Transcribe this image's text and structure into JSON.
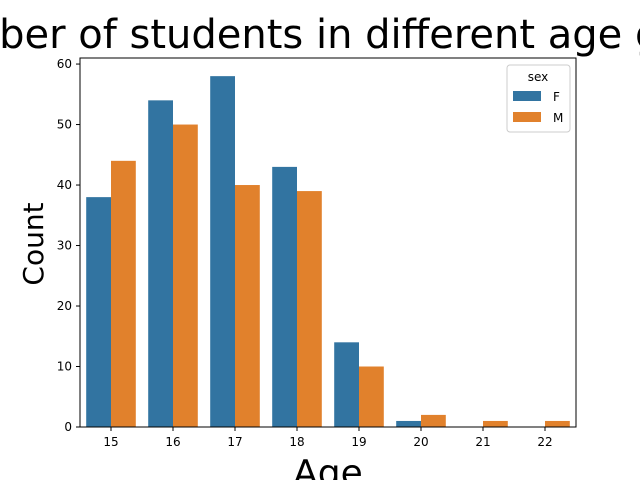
{
  "chart_data": {
    "type": "bar",
    "title": "Number of students in different age group",
    "xlabel": "Age",
    "ylabel": "Count",
    "categories": [
      "15",
      "16",
      "17",
      "18",
      "19",
      "20",
      "21",
      "22"
    ],
    "series": [
      {
        "name": "F",
        "color": "#3274a1",
        "values": [
          38,
          54,
          58,
          43,
          14,
          1,
          0,
          0
        ]
      },
      {
        "name": "M",
        "color": "#e1812c",
        "values": [
          44,
          50,
          40,
          39,
          10,
          2,
          1,
          1
        ]
      }
    ],
    "ylim": [
      0,
      61
    ],
    "yticks": [
      0,
      10,
      20,
      30,
      40,
      50,
      60
    ],
    "legend": {
      "title": "sex",
      "placement": "top-right"
    },
    "grid": false
  }
}
